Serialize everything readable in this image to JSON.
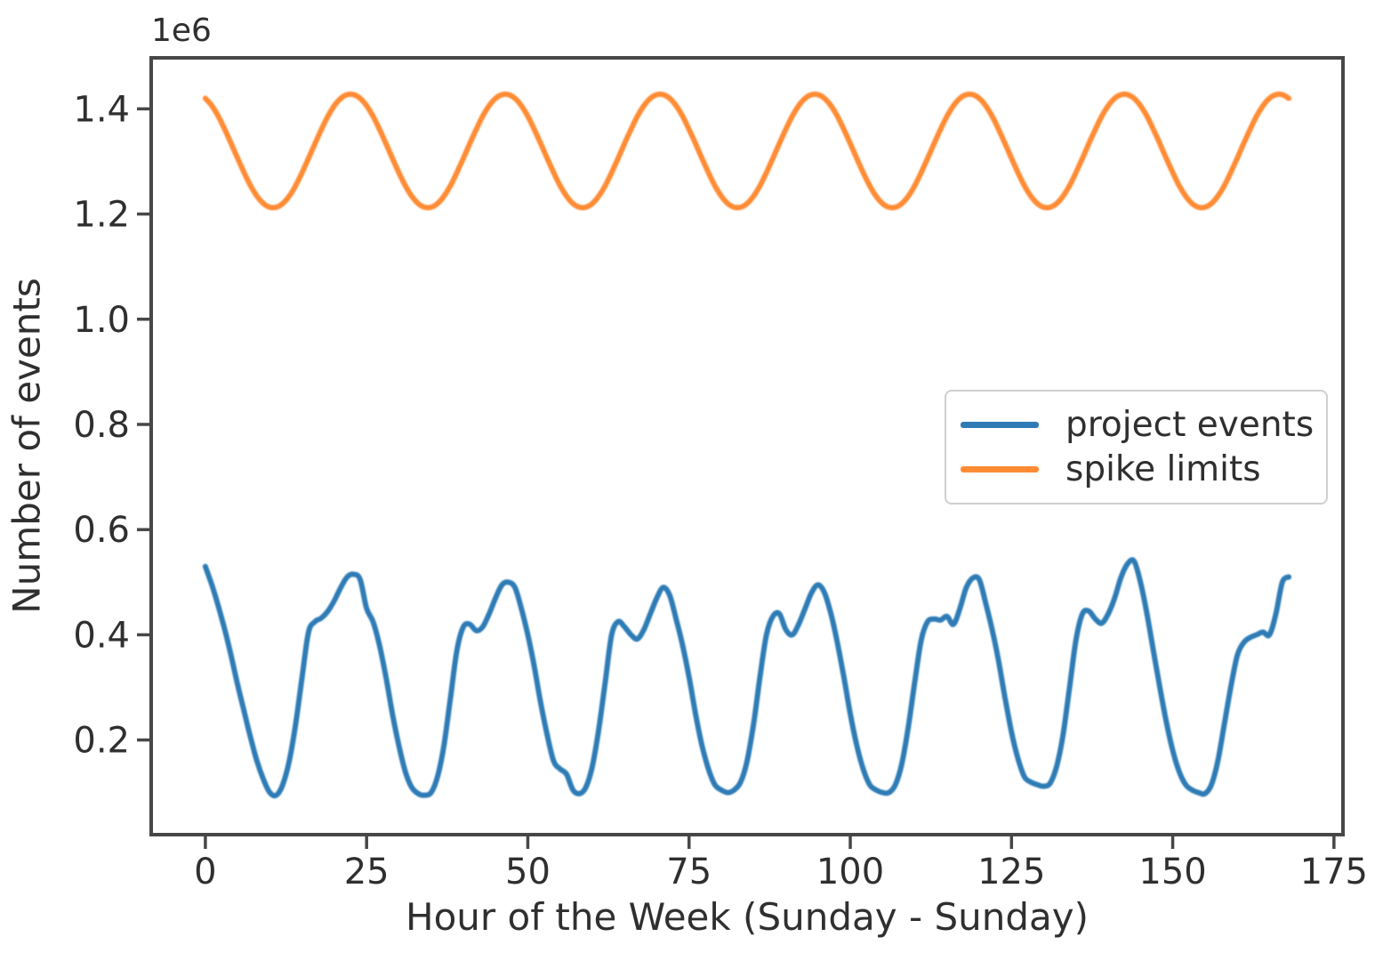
{
  "style": {
    "background": "#ffffff",
    "frame_color": "#474747",
    "text_color": "#2f2f2f",
    "legend_border_color": "#cfcfcf"
  },
  "chart_data": {
    "type": "line",
    "title": "",
    "xlabel": "Hour of the Week (Sunday - Sunday)",
    "ylabel": "Number of events",
    "y_offset_text": "1e6",
    "unit_multiplier": 1000000,
    "grid": false,
    "xlim": [
      -8.4,
      176.4
    ],
    "ylim": [
      0.02,
      1.497
    ],
    "xticks": [
      0,
      25,
      50,
      75,
      100,
      125,
      150,
      175
    ],
    "xtick_labels": [
      "0",
      "25",
      "50",
      "75",
      "100",
      "125",
      "150",
      "175"
    ],
    "yticks": [
      0.2,
      0.4,
      0.6,
      0.8,
      1.0,
      1.2,
      1.4
    ],
    "ytick_labels": [
      "0.2",
      "0.4",
      "0.6",
      "0.8",
      "1.0",
      "1.2",
      "1.4"
    ],
    "legend": {
      "location": "center right"
    },
    "series": [
      {
        "name": "project events",
        "color": "#2f7bb6",
        "x_start": 0,
        "x_step": 1,
        "values": [
          0.53,
          0.495,
          0.455,
          0.41,
          0.36,
          0.305,
          0.255,
          0.205,
          0.16,
          0.125,
          0.1,
          0.095,
          0.115,
          0.16,
          0.23,
          0.32,
          0.405,
          0.425,
          0.432,
          0.445,
          0.465,
          0.49,
          0.51,
          0.515,
          0.505,
          0.45,
          0.425,
          0.38,
          0.32,
          0.25,
          0.19,
          0.14,
          0.11,
          0.098,
          0.095,
          0.1,
          0.13,
          0.19,
          0.28,
          0.37,
          0.415,
          0.42,
          0.408,
          0.415,
          0.44,
          0.47,
          0.495,
          0.5,
          0.49,
          0.45,
          0.4,
          0.34,
          0.27,
          0.21,
          0.16,
          0.145,
          0.135,
          0.105,
          0.098,
          0.11,
          0.15,
          0.22,
          0.31,
          0.4,
          0.425,
          0.415,
          0.4,
          0.392,
          0.41,
          0.44,
          0.47,
          0.49,
          0.475,
          0.43,
          0.38,
          0.32,
          0.25,
          0.19,
          0.145,
          0.115,
          0.105,
          0.1,
          0.105,
          0.12,
          0.16,
          0.23,
          0.32,
          0.4,
          0.435,
          0.44,
          0.41,
          0.4,
          0.42,
          0.45,
          0.48,
          0.495,
          0.48,
          0.44,
          0.385,
          0.32,
          0.25,
          0.19,
          0.145,
          0.115,
          0.105,
          0.1,
          0.1,
          0.115,
          0.155,
          0.225,
          0.31,
          0.39,
          0.425,
          0.43,
          0.428,
          0.435,
          0.42,
          0.45,
          0.49,
          0.508,
          0.505,
          0.46,
          0.41,
          0.35,
          0.28,
          0.215,
          0.165,
          0.13,
          0.12,
          0.115,
          0.112,
          0.118,
          0.15,
          0.21,
          0.3,
          0.39,
          0.44,
          0.445,
          0.43,
          0.422,
          0.44,
          0.47,
          0.51,
          0.535,
          0.54,
          0.5,
          0.44,
          0.37,
          0.3,
          0.235,
          0.18,
          0.14,
          0.115,
          0.105,
          0.1,
          0.098,
          0.115,
          0.16,
          0.23,
          0.3,
          0.36,
          0.385,
          0.395,
          0.4,
          0.405,
          0.4,
          0.44,
          0.5,
          0.51
        ]
      },
      {
        "name": "spike limits",
        "color": "#ff8c34",
        "x_start": 0,
        "x_step": 1,
        "values": [
          1.42,
          1.406,
          1.386,
          1.361,
          1.334,
          1.306,
          1.279,
          1.254,
          1.234,
          1.22,
          1.213,
          1.213,
          1.22,
          1.234,
          1.254,
          1.279,
          1.306,
          1.334,
          1.361,
          1.386,
          1.406,
          1.42,
          1.427,
          1.427,
          1.42,
          1.406,
          1.386,
          1.361,
          1.334,
          1.306,
          1.279,
          1.254,
          1.234,
          1.22,
          1.213,
          1.213,
          1.22,
          1.234,
          1.254,
          1.279,
          1.306,
          1.334,
          1.361,
          1.386,
          1.406,
          1.42,
          1.427,
          1.427,
          1.42,
          1.406,
          1.386,
          1.361,
          1.334,
          1.306,
          1.279,
          1.254,
          1.234,
          1.22,
          1.213,
          1.213,
          1.22,
          1.234,
          1.254,
          1.279,
          1.306,
          1.334,
          1.361,
          1.386,
          1.406,
          1.42,
          1.427,
          1.427,
          1.42,
          1.406,
          1.386,
          1.361,
          1.334,
          1.306,
          1.279,
          1.254,
          1.234,
          1.22,
          1.213,
          1.213,
          1.22,
          1.234,
          1.254,
          1.279,
          1.306,
          1.334,
          1.361,
          1.386,
          1.406,
          1.42,
          1.427,
          1.427,
          1.42,
          1.406,
          1.386,
          1.361,
          1.334,
          1.306,
          1.279,
          1.254,
          1.234,
          1.22,
          1.213,
          1.213,
          1.22,
          1.234,
          1.254,
          1.279,
          1.306,
          1.334,
          1.361,
          1.386,
          1.406,
          1.42,
          1.427,
          1.427,
          1.42,
          1.406,
          1.386,
          1.361,
          1.334,
          1.306,
          1.279,
          1.254,
          1.234,
          1.22,
          1.213,
          1.213,
          1.22,
          1.234,
          1.254,
          1.279,
          1.306,
          1.334,
          1.361,
          1.386,
          1.406,
          1.42,
          1.427,
          1.427,
          1.42,
          1.406,
          1.386,
          1.361,
          1.334,
          1.306,
          1.279,
          1.254,
          1.234,
          1.22,
          1.213,
          1.213,
          1.22,
          1.234,
          1.254,
          1.279,
          1.306,
          1.334,
          1.361,
          1.386,
          1.406,
          1.42,
          1.427,
          1.427,
          1.42
        ]
      }
    ]
  }
}
